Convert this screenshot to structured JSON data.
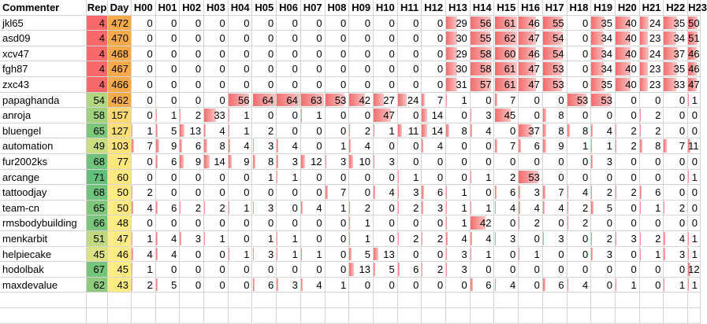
{
  "colors": {
    "bar": "#f26d6d",
    "rep_low": "#f8696b",
    "rep_high": "#63be7b",
    "day_low": "#ffeb84",
    "day_high": "#f8a94a"
  },
  "headers": [
    "Commenter",
    "Rep",
    "Day",
    "H00",
    "H01",
    "H02",
    "H03",
    "H04",
    "H05",
    "H06",
    "H07",
    "H08",
    "H09",
    "H10",
    "H11",
    "H12",
    "H13",
    "H14",
    "H15",
    "H16",
    "H17",
    "H18",
    "H19",
    "H20",
    "H21",
    "H22",
    "H23"
  ],
  "rows": [
    {
      "name": "jkl65",
      "rep": 4,
      "day": 472,
      "h": [
        0,
        0,
        0,
        0,
        0,
        0,
        0,
        0,
        0,
        0,
        0,
        0,
        0,
        29,
        56,
        61,
        46,
        55,
        0,
        35,
        40,
        24,
        35,
        50
      ]
    },
    {
      "name": "asd09",
      "rep": 4,
      "day": 470,
      "h": [
        0,
        0,
        0,
        0,
        0,
        0,
        0,
        0,
        0,
        0,
        0,
        0,
        0,
        30,
        55,
        62,
        47,
        54,
        0,
        34,
        40,
        23,
        34,
        51
      ]
    },
    {
      "name": "xcv47",
      "rep": 4,
      "day": 468,
      "h": [
        0,
        0,
        0,
        0,
        0,
        0,
        0,
        0,
        0,
        0,
        0,
        0,
        0,
        29,
        58,
        60,
        46,
        54,
        0,
        34,
        40,
        24,
        37,
        46
      ]
    },
    {
      "name": "fgh87",
      "rep": 4,
      "day": 467,
      "h": [
        0,
        0,
        0,
        0,
        0,
        0,
        0,
        0,
        0,
        0,
        0,
        0,
        0,
        30,
        58,
        61,
        47,
        53,
        0,
        34,
        40,
        23,
        35,
        46
      ]
    },
    {
      "name": "zxc43",
      "rep": 4,
      "day": 466,
      "h": [
        0,
        0,
        0,
        0,
        0,
        0,
        0,
        0,
        0,
        0,
        0,
        0,
        0,
        31,
        57,
        61,
        47,
        53,
        0,
        35,
        40,
        23,
        33,
        47
      ]
    },
    {
      "name": "papaghanda",
      "rep": 54,
      "day": 462,
      "h": [
        0,
        0,
        0,
        0,
        56,
        64,
        64,
        63,
        53,
        42,
        27,
        24,
        7,
        1,
        0,
        7,
        0,
        0,
        53,
        53,
        0,
        0,
        0,
        1
      ]
    },
    {
      "name": "anroja",
      "rep": 58,
      "day": 157,
      "h": [
        0,
        1,
        2,
        33,
        1,
        0,
        0,
        1,
        0,
        0,
        47,
        0,
        14,
        0,
        3,
        45,
        0,
        8,
        0,
        0,
        0,
        2,
        0,
        0
      ]
    },
    {
      "name": "bluengel",
      "rep": 65,
      "day": 127,
      "h": [
        1,
        5,
        13,
        4,
        1,
        2,
        0,
        0,
        0,
        2,
        1,
        11,
        14,
        8,
        4,
        0,
        37,
        8,
        8,
        4,
        2,
        2,
        0,
        0
      ]
    },
    {
      "name": "automation",
      "rep": 49,
      "day": 103,
      "h": [
        7,
        9,
        6,
        8,
        4,
        3,
        4,
        0,
        1,
        4,
        0,
        0,
        4,
        0,
        0,
        7,
        6,
        9,
        1,
        1,
        2,
        8,
        7,
        11
      ]
    },
    {
      "name": "fur2002ks",
      "rep": 68,
      "day": 77,
      "h": [
        0,
        6,
        9,
        14,
        9,
        8,
        3,
        12,
        3,
        10,
        3,
        0,
        0,
        0,
        0,
        0,
        0,
        0,
        0,
        3,
        0,
        0,
        0,
        0
      ]
    },
    {
      "name": "arcange",
      "rep": 71,
      "day": 60,
      "h": [
        0,
        0,
        0,
        0,
        0,
        1,
        1,
        0,
        0,
        0,
        0,
        1,
        0,
        0,
        1,
        2,
        53,
        0,
        0,
        0,
        0,
        0,
        0,
        1
      ]
    },
    {
      "name": "tattoodjay",
      "rep": 68,
      "day": 50,
      "h": [
        2,
        0,
        0,
        0,
        0,
        0,
        0,
        0,
        7,
        0,
        4,
        3,
        6,
        1,
        0,
        6,
        3,
        7,
        4,
        2,
        2,
        6,
        0,
        0
      ]
    },
    {
      "name": "team-cn",
      "rep": 65,
      "day": 50,
      "h": [
        4,
        6,
        2,
        2,
        1,
        3,
        0,
        4,
        1,
        2,
        0,
        2,
        3,
        1,
        1,
        4,
        4,
        4,
        2,
        5,
        0,
        1,
        2,
        0
      ]
    },
    {
      "name": "rmsbodybuilding",
      "rep": 66,
      "day": 48,
      "h": [
        0,
        0,
        0,
        0,
        0,
        0,
        0,
        0,
        0,
        1,
        0,
        0,
        0,
        1,
        42,
        0,
        2,
        0,
        2,
        0,
        0,
        0,
        0,
        0
      ]
    },
    {
      "name": "menkarbit",
      "rep": 51,
      "day": 47,
      "h": [
        1,
        4,
        3,
        1,
        0,
        1,
        1,
        0,
        0,
        1,
        0,
        2,
        2,
        4,
        4,
        3,
        0,
        3,
        0,
        2,
        3,
        2,
        4,
        1
      ]
    },
    {
      "name": "helpiecake",
      "rep": 45,
      "day": 46,
      "h": [
        4,
        4,
        0,
        0,
        1,
        3,
        1,
        1,
        0,
        5,
        13,
        0,
        0,
        3,
        1,
        0,
        1,
        0,
        0,
        3,
        0,
        1,
        3,
        1
      ]
    },
    {
      "name": "hodolbak",
      "rep": 67,
      "day": 45,
      "h": [
        1,
        0,
        0,
        0,
        0,
        0,
        0,
        0,
        0,
        13,
        5,
        6,
        2,
        3,
        0,
        0,
        0,
        0,
        0,
        0,
        0,
        0,
        0,
        12
      ]
    },
    {
      "name": "maxdevalue",
      "rep": 62,
      "day": 43,
      "h": [
        2,
        5,
        0,
        0,
        0,
        6,
        3,
        4,
        1,
        0,
        0,
        0,
        0,
        0,
        6,
        4,
        0,
        6,
        4,
        0,
        1,
        0,
        1,
        1
      ]
    }
  ]
}
